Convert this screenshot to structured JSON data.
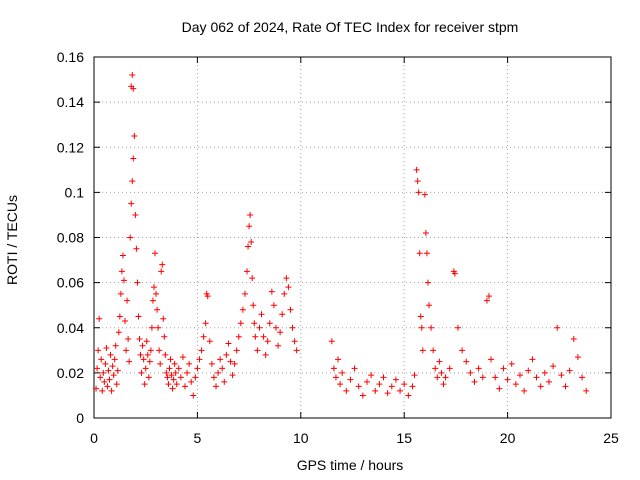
{
  "chart_data": {
    "type": "scatter",
    "title": "Day 062 of 2024, Rate Of TEC Index for receiver stpm",
    "xlabel": "GPS time / hours",
    "ylabel": "ROTI / TECUs",
    "xlim": [
      0,
      25
    ],
    "ylim": [
      0,
      0.16
    ],
    "xticks": [
      0,
      5,
      10,
      15,
      20,
      25
    ],
    "xtick_labels": [
      "0",
      "5",
      "10",
      "15",
      "20",
      "25"
    ],
    "yticks": [
      0,
      0.02,
      0.04,
      0.06,
      0.08,
      0.1,
      0.12,
      0.14,
      0.16
    ],
    "ytick_labels": [
      "0",
      "0.02",
      "0.04",
      "0.06",
      "0.08",
      "0.1",
      "0.12",
      "0.14",
      "0.16"
    ],
    "grid": true,
    "marker": "+",
    "color": "#ff0000",
    "series": [
      {
        "name": "ROTI",
        "points": [
          [
            0.1,
            0.013
          ],
          [
            0.15,
            0.022
          ],
          [
            0.2,
            0.03
          ],
          [
            0.25,
            0.044
          ],
          [
            0.3,
            0.018
          ],
          [
            0.35,
            0.026
          ],
          [
            0.4,
            0.012
          ],
          [
            0.45,
            0.02
          ],
          [
            0.5,
            0.016
          ],
          [
            0.55,
            0.024
          ],
          [
            0.6,
            0.031
          ],
          [
            0.65,
            0.014
          ],
          [
            0.7,
            0.021
          ],
          [
            0.75,
            0.017
          ],
          [
            0.8,
            0.028
          ],
          [
            0.85,
            0.012
          ],
          [
            0.9,
            0.023
          ],
          [
            0.95,
            0.019
          ],
          [
            1.0,
            0.026
          ],
          [
            1.05,
            0.032
          ],
          [
            1.1,
            0.015
          ],
          [
            1.15,
            0.021
          ],
          [
            1.2,
            0.038
          ],
          [
            1.25,
            0.045
          ],
          [
            1.3,
            0.055
          ],
          [
            1.35,
            0.065
          ],
          [
            1.4,
            0.072
          ],
          [
            1.45,
            0.061
          ],
          [
            1.5,
            0.043
          ],
          [
            1.55,
            0.03
          ],
          [
            1.6,
            0.052
          ],
          [
            1.65,
            0.035
          ],
          [
            1.7,
            0.025
          ],
          [
            1.75,
            0.08
          ],
          [
            1.8,
            0.095
          ],
          [
            1.85,
            0.105
          ],
          [
            1.9,
            0.115
          ],
          [
            1.95,
            0.125
          ],
          [
            1.8,
            0.147
          ],
          [
            1.85,
            0.152
          ],
          [
            1.9,
            0.146
          ],
          [
            2.0,
            0.09
          ],
          [
            2.05,
            0.075
          ],
          [
            2.1,
            0.06
          ],
          [
            2.15,
            0.045
          ],
          [
            2.2,
            0.035
          ],
          [
            2.25,
            0.028
          ],
          [
            2.3,
            0.02
          ],
          [
            2.35,
            0.032
          ],
          [
            2.4,
            0.026
          ],
          [
            2.45,
            0.015
          ],
          [
            2.5,
            0.022
          ],
          [
            2.55,
            0.034
          ],
          [
            2.6,
            0.028
          ],
          [
            2.65,
            0.018
          ],
          [
            2.7,
            0.025
          ],
          [
            2.75,
            0.03
          ],
          [
            2.8,
            0.04
          ],
          [
            2.85,
            0.052
          ],
          [
            2.9,
            0.058
          ],
          [
            2.95,
            0.073
          ],
          [
            3.0,
            0.055
          ],
          [
            3.05,
            0.048
          ],
          [
            3.1,
            0.04
          ],
          [
            3.15,
            0.03
          ],
          [
            3.2,
            0.024
          ],
          [
            3.25,
            0.065
          ],
          [
            3.3,
            0.068
          ],
          [
            3.35,
            0.044
          ],
          [
            3.4,
            0.036
          ],
          [
            3.45,
            0.028
          ],
          [
            3.5,
            0.02
          ],
          [
            3.55,
            0.018
          ],
          [
            3.6,
            0.015
          ],
          [
            3.65,
            0.022
          ],
          [
            3.7,
            0.026
          ],
          [
            3.75,
            0.019
          ],
          [
            3.8,
            0.013
          ],
          [
            3.85,
            0.017
          ],
          [
            3.9,
            0.024
          ],
          [
            3.95,
            0.02
          ],
          [
            4.0,
            0.015
          ],
          [
            4.1,
            0.022
          ],
          [
            4.2,
            0.018
          ],
          [
            4.3,
            0.027
          ],
          [
            4.4,
            0.014
          ],
          [
            4.5,
            0.02
          ],
          [
            4.6,
            0.024
          ],
          [
            4.7,
            0.016
          ],
          [
            4.8,
            0.01
          ],
          [
            4.9,
            0.018
          ],
          [
            5.0,
            0.022
          ],
          [
            5.1,
            0.026
          ],
          [
            5.2,
            0.03
          ],
          [
            5.3,
            0.036
          ],
          [
            5.4,
            0.042
          ],
          [
            5.45,
            0.055
          ],
          [
            5.5,
            0.054
          ],
          [
            5.6,
            0.034
          ],
          [
            5.7,
            0.024
          ],
          [
            5.8,
            0.018
          ],
          [
            5.9,
            0.014
          ],
          [
            6.0,
            0.02
          ],
          [
            6.1,
            0.026
          ],
          [
            6.2,
            0.022
          ],
          [
            6.3,
            0.016
          ],
          [
            6.4,
            0.028
          ],
          [
            6.5,
            0.033
          ],
          [
            6.6,
            0.025
          ],
          [
            6.7,
            0.019
          ],
          [
            6.8,
            0.024
          ],
          [
            6.9,
            0.03
          ],
          [
            7.0,
            0.036
          ],
          [
            7.1,
            0.042
          ],
          [
            7.2,
            0.048
          ],
          [
            7.3,
            0.055
          ],
          [
            7.4,
            0.065
          ],
          [
            7.45,
            0.076
          ],
          [
            7.5,
            0.085
          ],
          [
            7.55,
            0.09
          ],
          [
            7.6,
            0.078
          ],
          [
            7.65,
            0.062
          ],
          [
            7.7,
            0.05
          ],
          [
            7.75,
            0.042
          ],
          [
            7.8,
            0.036
          ],
          [
            7.9,
            0.03
          ],
          [
            8.0,
            0.04
          ],
          [
            8.1,
            0.046
          ],
          [
            8.2,
            0.036
          ],
          [
            8.3,
            0.028
          ],
          [
            8.4,
            0.034
          ],
          [
            8.5,
            0.042
          ],
          [
            8.6,
            0.056
          ],
          [
            8.7,
            0.05
          ],
          [
            8.8,
            0.04
          ],
          [
            8.9,
            0.032
          ],
          [
            9.0,
            0.038
          ],
          [
            9.1,
            0.046
          ],
          [
            9.2,
            0.055
          ],
          [
            9.3,
            0.062
          ],
          [
            9.4,
            0.058
          ],
          [
            9.5,
            0.048
          ],
          [
            9.6,
            0.04
          ],
          [
            9.7,
            0.034
          ],
          [
            9.8,
            0.03
          ],
          [
            11.5,
            0.034
          ],
          [
            11.6,
            0.022
          ],
          [
            11.7,
            0.018
          ],
          [
            11.8,
            0.026
          ],
          [
            11.9,
            0.015
          ],
          [
            12.0,
            0.02
          ],
          [
            12.2,
            0.012
          ],
          [
            12.4,
            0.017
          ],
          [
            12.6,
            0.022
          ],
          [
            12.8,
            0.014
          ],
          [
            13.0,
            0.01
          ],
          [
            13.2,
            0.016
          ],
          [
            13.4,
            0.019
          ],
          [
            13.6,
            0.012
          ],
          [
            13.8,
            0.015
          ],
          [
            14.0,
            0.018
          ],
          [
            14.2,
            0.011
          ],
          [
            14.4,
            0.014
          ],
          [
            14.6,
            0.017
          ],
          [
            14.8,
            0.012
          ],
          [
            15.0,
            0.015
          ],
          [
            15.2,
            0.01
          ],
          [
            15.4,
            0.014
          ],
          [
            15.5,
            0.019
          ],
          [
            15.6,
            0.11
          ],
          [
            15.65,
            0.105
          ],
          [
            15.7,
            0.1
          ],
          [
            15.75,
            0.073
          ],
          [
            15.8,
            0.045
          ],
          [
            15.85,
            0.04
          ],
          [
            15.9,
            0.03
          ],
          [
            16.0,
            0.099
          ],
          [
            16.05,
            0.082
          ],
          [
            16.1,
            0.073
          ],
          [
            16.15,
            0.06
          ],
          [
            16.2,
            0.05
          ],
          [
            16.3,
            0.04
          ],
          [
            16.4,
            0.03
          ],
          [
            16.5,
            0.022
          ],
          [
            16.6,
            0.018
          ],
          [
            16.7,
            0.025
          ],
          [
            16.8,
            0.02
          ],
          [
            16.9,
            0.015
          ],
          [
            17.0,
            0.018
          ],
          [
            17.2,
            0.022
          ],
          [
            17.4,
            0.065
          ],
          [
            17.45,
            0.064
          ],
          [
            17.6,
            0.04
          ],
          [
            17.8,
            0.03
          ],
          [
            18.0,
            0.025
          ],
          [
            18.2,
            0.02
          ],
          [
            18.4,
            0.016
          ],
          [
            18.6,
            0.022
          ],
          [
            18.8,
            0.018
          ],
          [
            19.0,
            0.052
          ],
          [
            19.1,
            0.054
          ],
          [
            19.2,
            0.026
          ],
          [
            19.4,
            0.018
          ],
          [
            19.6,
            0.013
          ],
          [
            19.8,
            0.022
          ],
          [
            20.0,
            0.017
          ],
          [
            20.2,
            0.024
          ],
          [
            20.4,
            0.015
          ],
          [
            20.6,
            0.019
          ],
          [
            20.8,
            0.012
          ],
          [
            21.0,
            0.021
          ],
          [
            21.2,
            0.026
          ],
          [
            21.4,
            0.018
          ],
          [
            21.6,
            0.014
          ],
          [
            21.8,
            0.02
          ],
          [
            22.0,
            0.016
          ],
          [
            22.2,
            0.023
          ],
          [
            22.4,
            0.04
          ],
          [
            22.6,
            0.019
          ],
          [
            22.8,
            0.014
          ],
          [
            23.0,
            0.021
          ],
          [
            23.2,
            0.035
          ],
          [
            23.4,
            0.027
          ],
          [
            23.6,
            0.018
          ],
          [
            23.8,
            0.012
          ]
        ]
      }
    ]
  }
}
